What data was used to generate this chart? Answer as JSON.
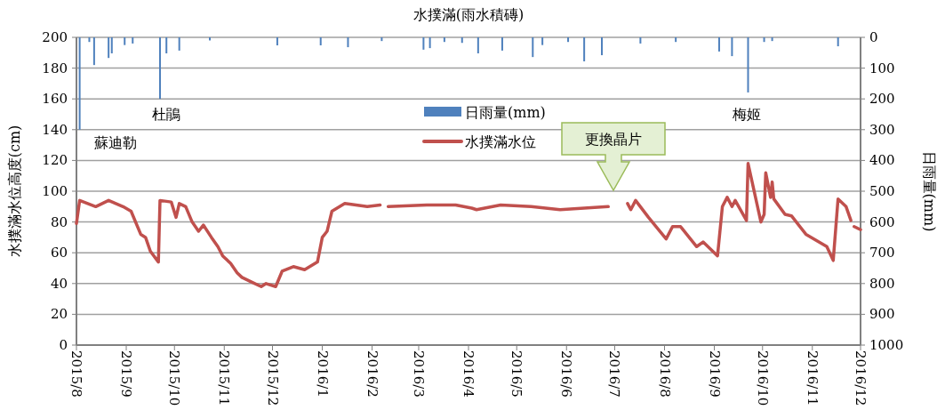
{
  "chart_data": {
    "type": "line",
    "title": "水撲滿(雨水積磚)",
    "ylabel": "水撲滿水位高度(cm)",
    "y2label": "日雨量(mm)",
    "xlim": [
      "2015-08-01",
      "2016-12-01"
    ],
    "xticks": [
      {
        "value": "2015-08-01",
        "label": "2015/8"
      },
      {
        "value": "2015-09-01",
        "label": "2015/9"
      },
      {
        "value": "2015-10-01",
        "label": "2015/10"
      },
      {
        "value": "2015-11-01",
        "label": "2015/11"
      },
      {
        "value": "2015-12-01",
        "label": "2015/12"
      },
      {
        "value": "2016-01-01",
        "label": "2016/1"
      },
      {
        "value": "2016-02-01",
        "label": "2016/2"
      },
      {
        "value": "2016-03-01",
        "label": "2016/3"
      },
      {
        "value": "2016-04-01",
        "label": "2016/4"
      },
      {
        "value": "2016-05-01",
        "label": "2016/5"
      },
      {
        "value": "2016-06-01",
        "label": "2016/6"
      },
      {
        "value": "2016-07-01",
        "label": "2016/7"
      },
      {
        "value": "2016-08-01",
        "label": "2016/8"
      },
      {
        "value": "2016-09-01",
        "label": "2016/9"
      },
      {
        "value": "2016-10-01",
        "label": "2016/10"
      },
      {
        "value": "2016-11-01",
        "label": "2016/11"
      },
      {
        "value": "2016-12-01",
        "label": "2016/12"
      }
    ],
    "ylim": [
      0,
      200
    ],
    "yticks": [
      0,
      20,
      40,
      60,
      80,
      100,
      120,
      140,
      160,
      180,
      200
    ],
    "y2lim": [
      1000,
      0
    ],
    "y2ticks": [
      0,
      100,
      200,
      300,
      400,
      500,
      600,
      700,
      800,
      900,
      1000
    ],
    "grid": "y",
    "legend": "top",
    "series": [
      {
        "name": "日雨量(mm)",
        "type": "bar",
        "axis": "y2",
        "color": "#4f81bd",
        "x": [
          "2015-08-03",
          "2015-08-09",
          "2015-08-12",
          "2015-08-21",
          "2015-08-23",
          "2015-08-31",
          "2015-09-05",
          "2015-09-22",
          "2015-09-26",
          "2015-10-04",
          "2015-10-23",
          "2015-12-04",
          "2015-12-31",
          "2016-01-17",
          "2016-02-07",
          "2016-03-04",
          "2016-03-08",
          "2016-03-17",
          "2016-03-28",
          "2016-04-07",
          "2016-04-22",
          "2016-05-11",
          "2016-05-17",
          "2016-06-02",
          "2016-06-12",
          "2016-06-23",
          "2016-07-17",
          "2016-08-08",
          "2016-09-04",
          "2016-09-12",
          "2016-09-22",
          "2016-10-02",
          "2016-10-07",
          "2016-11-17"
        ],
        "values": [
          300,
          15,
          90,
          67,
          52,
          25,
          20,
          200,
          52,
          43,
          10,
          26,
          26,
          32,
          12,
          40,
          35,
          15,
          18,
          52,
          43,
          64,
          25,
          15,
          78,
          58,
          20,
          15,
          46,
          61,
          179,
          15,
          12,
          29
        ]
      },
      {
        "name": "水撲滿水位",
        "color": "#c0504d",
        "x": [
          "2015-08-01",
          "2015-08-03",
          "2015-08-13",
          "2015-08-21",
          "2015-08-30",
          "2015-09-04",
          "2015-09-10",
          "2015-09-13",
          "2015-09-16",
          "2015-09-21",
          "2015-09-22",
          "2015-09-29",
          "2015-10-02",
          "2015-10-04",
          "2015-10-08",
          "2015-10-12",
          "2015-10-16",
          "2015-10-19",
          "2015-10-24",
          "2015-10-28",
          "2015-10-31",
          "2015-11-05",
          "2015-11-09",
          "2015-11-12",
          "2015-11-18",
          "2015-11-24",
          "2015-11-27",
          "2015-12-03",
          "2015-12-07",
          "2015-12-14",
          "2015-12-21",
          "2015-12-29",
          "2016-01-01",
          "2016-01-04",
          "2016-01-07",
          "2016-01-15",
          "2016-01-29",
          "2016-02-06",
          "2016-02-08",
          "2016-02-11",
          "2016-03-06",
          "2016-03-24",
          "2016-04-03",
          "2016-04-06",
          "2016-04-21",
          "2016-05-10",
          "2016-05-28",
          "2016-06-27",
          "2016-07-03",
          "2016-07-09",
          "2016-07-11",
          "2016-07-14",
          "2016-07-22",
          "2016-08-02",
          "2016-08-06",
          "2016-08-11",
          "2016-08-21",
          "2016-08-25",
          "2016-09-03",
          "2016-09-06",
          "2016-09-09",
          "2016-09-12",
          "2016-09-14",
          "2016-09-21",
          "2016-09-22",
          "2016-09-30",
          "2016-10-02",
          "2016-10-03",
          "2016-10-06",
          "2016-10-07",
          "2016-10-08",
          "2016-10-15",
          "2016-10-19",
          "2016-10-28",
          "2016-11-10",
          "2016-11-14",
          "2016-11-17",
          "2016-11-22",
          "2016-11-25",
          "2016-11-26",
          "2016-11-27",
          "2016-12-01"
        ],
        "values": [
          79,
          94,
          90,
          94,
          90,
          87,
          72,
          70,
          61,
          54,
          94,
          93,
          83,
          92,
          90,
          80,
          74,
          78,
          70,
          64,
          58,
          53,
          47,
          44,
          41,
          38,
          40,
          38,
          48,
          51,
          49,
          54,
          70,
          74,
          87,
          92,
          90,
          91,
          null,
          90,
          91,
          91,
          89,
          88,
          91,
          90,
          88,
          90,
          null,
          92,
          88,
          94,
          83,
          69,
          77,
          77,
          64,
          67,
          58,
          90,
          96,
          90,
          94,
          81,
          118,
          80,
          85,
          112,
          96,
          106,
          95,
          85,
          84,
          72,
          64,
          55,
          95,
          90,
          81,
          null,
          77,
          75
        ]
      }
    ],
    "annotations": [
      "蘇迪勒",
      "杜鵑",
      "梅姬",
      "更換晶片"
    ]
  }
}
